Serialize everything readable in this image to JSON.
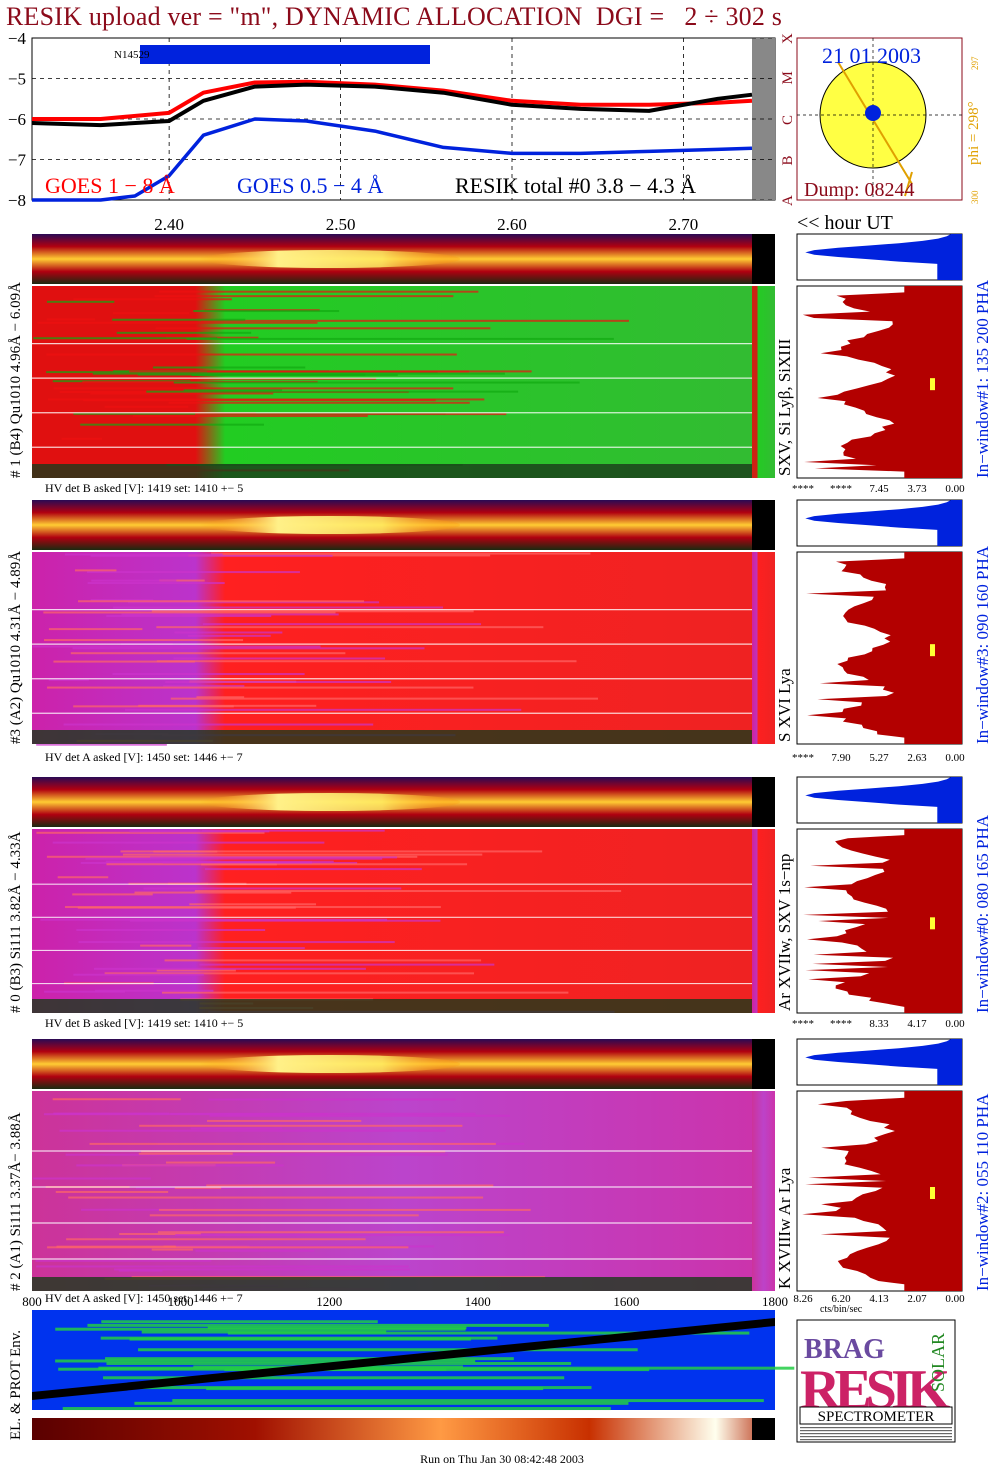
{
  "title": "RESIK upload ver = \"m\", DYNAMIC ALLOCATION  DGI =   2 ÷ 302 s",
  "footer": "Run on Thu Jan 30 08:42:48 2003",
  "goes_panel": {
    "yticks": [
      "−4",
      "−5",
      "−6",
      "−7",
      "−8"
    ],
    "right_labels": [
      "X",
      "M",
      "C",
      "B",
      "A"
    ],
    "xticks": [
      "2.40",
      "2.50",
      "2.60",
      "2.70"
    ],
    "hour_label": "<< hour UT",
    "bar_label": "N14529",
    "legend_goes1": "GOES 1 − 8 Å",
    "legend_goes05": "GOES 0.5 − 4 Å",
    "legend_resik": "RESIK total #0  3.8 − 4.3 Å"
  },
  "sun_panel": {
    "date": "21 01 2003",
    "dump": "Dump: 08244",
    "phi": "phi = 298°",
    "phi_sup": "297",
    "phi_low": "300"
  },
  "channels": [
    {
      "left": "# 1 (B4) Qu1010 4.96Å − 6.09Å",
      "right": "SXV, Si Lyβ, SiXIII",
      "hv": "HV det B asked [V]:  1419 set:  1410 +−    5",
      "window": "In−window#1:  135 200 PHA",
      "ticks": [
        "****",
        "****",
        "7.45",
        "3.73",
        "0.00"
      ]
    },
    {
      "left": "#3 (A2) Qu1010  4.31Å − 4.89Å",
      "right": "S XVI Lya",
      "hv": "HV det A asked [V]:  1450 set:  1446 +−    7",
      "window": "In−window#3:  090 160 PHA",
      "ticks": [
        "****",
        "7.90",
        "5.27",
        "2.63",
        "0.00"
      ]
    },
    {
      "left": "# 0 (B3) Si111  3.82Å − 4.33Å",
      "right": "Ar XVIIw,  SXV 1s−np",
      "hv": "HV det B asked [V]:  1419 set:  1410 +−    5",
      "window": "In−window#0:  080 165 PHA",
      "ticks": [
        "****",
        "****",
        "8.33",
        "4.17",
        "0.00"
      ]
    },
    {
      "left": "# 2 (A1) Si111  3.37Å− 3.88Å",
      "right": "K XVIIIw  Ar Lya",
      "hv": "HV det A asked [V]:  1450 set:  1446 +−    7",
      "window": "In−window#2:  055 110 PHA",
      "ticks": [
        "8.26",
        "6.20",
        "4.13",
        "2.07",
        "0.00"
      ]
    }
  ],
  "bottom_axis": {
    "ticks": [
      "800",
      "1000",
      "1200",
      "1400",
      "1600",
      "1800"
    ],
    "cts_label": "cts/bin/sec"
  },
  "env_label": "EL. & PROT Env.",
  "logo": {
    "letters": "RESIK",
    "small": "BRAG",
    "side": "SOLAR",
    "caption": "SPECTROMETER"
  },
  "colors": {
    "goes1": "#ff0000",
    "goes05": "#0022dd",
    "resik": "#000000",
    "title": "#8b0a1a",
    "hist": "#b30000",
    "hist_top": "#0022dd",
    "sun": "#ffff44"
  },
  "chart_data": [
    {
      "type": "line",
      "xlabel": "<< hour UT",
      "x_ticks": [
        2.4,
        2.5,
        2.6,
        2.7
      ],
      "y_ticks": [
        -4,
        -5,
        -6,
        -7,
        -8
      ],
      "ylim": [
        -8,
        -4
      ],
      "grid": true,
      "series": [
        {
          "name": "GOES 1 − 8 Å",
          "x": [
            2.32,
            2.36,
            2.4,
            2.42,
            2.45,
            2.48,
            2.52,
            2.56,
            2.6,
            2.64,
            2.68,
            2.72,
            2.74
          ],
          "y": [
            -6.0,
            -6.0,
            -5.85,
            -5.35,
            -5.1,
            -5.08,
            -5.15,
            -5.3,
            -5.55,
            -5.65,
            -5.65,
            -5.6,
            -5.55
          ]
        },
        {
          "name": "GOES 0.5 − 4 Å",
          "x": [
            2.32,
            2.36,
            2.38,
            2.4,
            2.42,
            2.45,
            2.48,
            2.52,
            2.56,
            2.6,
            2.64,
            2.68,
            2.72,
            2.74
          ],
          "y": [
            -8.0,
            -8.0,
            -7.9,
            -7.4,
            -6.4,
            -6.0,
            -6.05,
            -6.3,
            -6.7,
            -6.85,
            -6.85,
            -6.8,
            -6.75,
            -6.72
          ]
        },
        {
          "name": "RESIK total #0  3.8 − 4.3 Å",
          "x": [
            2.32,
            2.36,
            2.4,
            2.42,
            2.45,
            2.48,
            2.52,
            2.56,
            2.6,
            2.64,
            2.68,
            2.72,
            2.74
          ],
          "y": [
            -6.1,
            -6.15,
            -6.05,
            -5.55,
            -5.2,
            -5.15,
            -5.2,
            -5.35,
            -5.65,
            -5.75,
            -5.8,
            -5.5,
            -5.4
          ]
        }
      ]
    }
  ]
}
